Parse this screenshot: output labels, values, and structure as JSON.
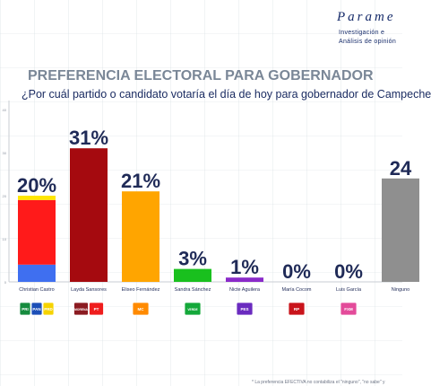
{
  "brand": {
    "name": "Parame",
    "line1": "Investigación e",
    "line2": "Análisis de opinión"
  },
  "header": {
    "title": "PREFERENCIA ELECTORAL PARA GOBERNADOR",
    "subtitle": "¿Por cuál partido o candidato votaría el día de hoy para gobernador de Campeche"
  },
  "chart_data": {
    "type": "bar",
    "title": "PREFERENCIA ELECTORAL PARA GOBERNADOR",
    "subtitle": "¿Por cuál partido o candidato votaría el día de hoy para gobernador de Campeche",
    "xlabel": "",
    "ylabel": "",
    "ylim": [
      0,
      40
    ],
    "y_ticks": [
      "40",
      "30",
      "20",
      "10",
      "0"
    ],
    "grid": false,
    "legend": "none",
    "categories": [
      "Christian Castro",
      "Layda Sansores",
      "Eliseo Fernández",
      "Sandra Sánchez",
      "Nicte Aguilera",
      "María Cocom",
      "Luis García",
      "Ninguno"
    ],
    "values": [
      20,
      31,
      21,
      3,
      1,
      0,
      0,
      24
    ],
    "labels": [
      "20%",
      "31%",
      "21%",
      "3%",
      "1%",
      "0%",
      "0%",
      "24"
    ],
    "colors": [
      "#ff1a1a",
      "#a50a0f",
      "#ffa500",
      "#19c01e",
      "#8a2ac9",
      "#bbbbbb",
      "#bbbbbb",
      "#8f8f8f"
    ],
    "stacked_segments": [
      {
        "name": "",
        "value": 4,
        "color": "#3f6ff0"
      },
      {
        "name": "",
        "value": 15,
        "color": "#ff1a1a"
      },
      {
        "name": "",
        "value": 1,
        "color": "#ffe600"
      }
    ],
    "party_logos": [
      [
        "PRI",
        "PAN",
        "PRD"
      ],
      [
        "MORENA",
        "PT"
      ],
      [
        "MC"
      ],
      [
        "VERDE"
      ],
      [
        "PES"
      ],
      [
        "RP"
      ],
      [
        "FXM"
      ],
      []
    ]
  },
  "footnote": "* La preferencia EFECTIVA no contabiliza el \"ninguno\", \"no sabe\" y"
}
